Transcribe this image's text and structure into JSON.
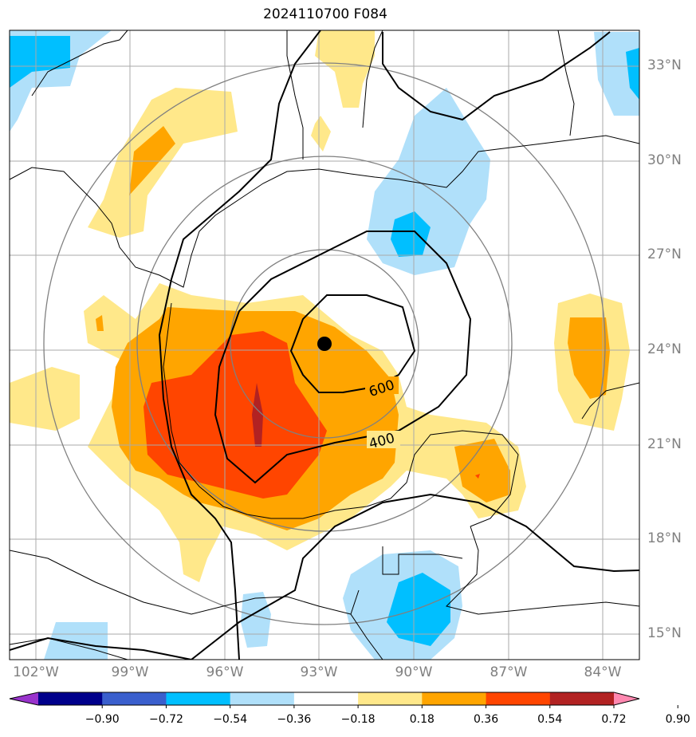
{
  "title": "2024110700 F084",
  "map": {
    "storm_center_label": "",
    "contour_labels": [
      "600",
      "400"
    ]
  },
  "axes": {
    "y_ticks": [
      "33°N",
      "30°N",
      "27°N",
      "24°N",
      "21°N",
      "18°N",
      "15°N"
    ],
    "x_ticks": [
      "102°W",
      "99°W",
      "96°W",
      "93°W",
      "90°W",
      "87°W",
      "84°W"
    ]
  },
  "colorbar": {
    "ticks": [
      "−0.90",
      "−0.72",
      "−0.54",
      "−0.36",
      "−0.18",
      "0.18",
      "0.36",
      "0.54",
      "0.72",
      "0.90"
    ],
    "colors": [
      "#9933cc",
      "#00008b",
      "#3a5fcd",
      "#00bfff",
      "#b0e0fa",
      "#ffffff",
      "#ffe88a",
      "#ffa500",
      "#ff4500",
      "#b22222",
      "#ff88b0"
    ]
  },
  "chart_data": {
    "type": "map",
    "title": "2024110700 F084",
    "lon_range": [
      -103,
      -83
    ],
    "lat_range": [
      14,
      34
    ],
    "storm_center": {
      "lon": -92.8,
      "lat": 24.2
    },
    "contours": [
      {
        "label": "600"
      },
      {
        "label": "400"
      }
    ],
    "colorbar_levels": [
      -0.9,
      -0.72,
      -0.54,
      -0.36,
      -0.18,
      0.18,
      0.36,
      0.54,
      0.72,
      0.9
    ]
  }
}
